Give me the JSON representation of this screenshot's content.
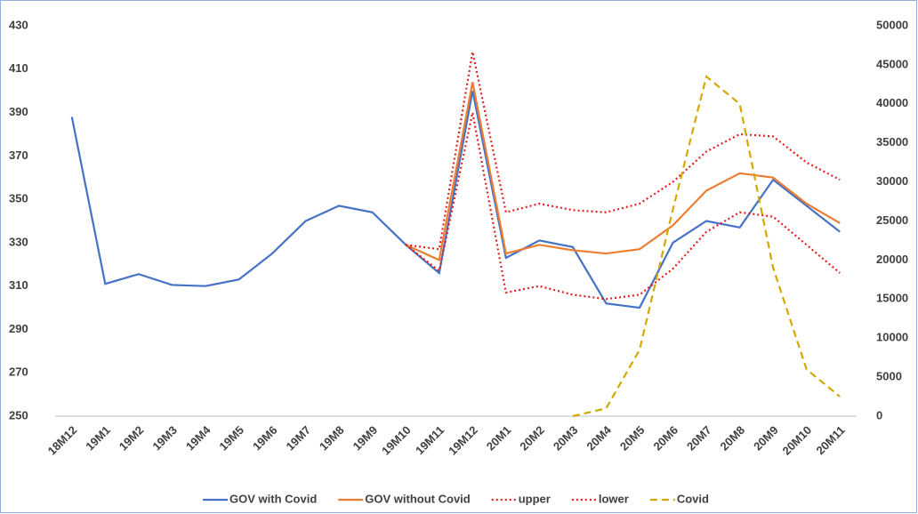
{
  "chart_data": {
    "type": "line",
    "categories": [
      "18M12",
      "19M1",
      "19M2",
      "19M3",
      "19M4",
      "19M5",
      "19M6",
      "19M7",
      "19M8",
      "19M9",
      "19M10",
      "19M11",
      "19M12",
      "20M1",
      "20M2",
      "20M3",
      "20M4",
      "20M5",
      "20M6",
      "20M7",
      "20M8",
      "20M9",
      "20M10",
      "20M11"
    ],
    "series": [
      {
        "name": "GOV with Covid",
        "color": "#4472c4",
        "dash": "solid",
        "values": [
          388,
          311,
          315.5,
          310.5,
          310,
          313,
          325,
          340,
          347,
          344,
          329,
          316,
          400,
          323,
          331,
          328,
          302,
          300,
          330,
          340,
          337,
          359,
          347,
          335
        ]
      },
      {
        "name": "GOV without Covid",
        "color": "#ed7d31",
        "dash": "solid",
        "values": [
          null,
          null,
          null,
          null,
          null,
          null,
          null,
          null,
          null,
          null,
          329,
          322,
          404,
          325,
          329,
          326.5,
          325,
          327,
          338,
          354,
          362,
          360,
          348,
          339
        ]
      },
      {
        "name": "upper",
        "color": "#e02020",
        "dash": "dotted",
        "values": [
          null,
          null,
          null,
          null,
          null,
          null,
          null,
          null,
          null,
          null,
          329,
          327,
          418,
          344,
          348,
          345,
          344,
          348,
          358,
          372,
          380,
          379,
          367,
          359
        ]
      },
      {
        "name": "lower",
        "color": "#e02020",
        "dash": "dotted",
        "values": [
          null,
          null,
          null,
          null,
          null,
          null,
          null,
          null,
          null,
          null,
          329,
          317,
          390,
          307,
          310,
          306,
          304,
          306,
          318,
          335,
          344,
          342,
          329,
          316
        ]
      },
      {
        "name": "Covid",
        "color": "#d4a800",
        "dash": "dashed",
        "axis": "y2",
        "values": [
          null,
          null,
          null,
          null,
          null,
          null,
          null,
          null,
          null,
          null,
          null,
          null,
          null,
          null,
          null,
          0,
          1000,
          8500,
          26500,
          43500,
          40000,
          19000,
          6000,
          2500
        ]
      }
    ],
    "ylim": [
      250,
      430
    ],
    "yticks": [
      250,
      270,
      290,
      310,
      330,
      350,
      370,
      390,
      410,
      430
    ],
    "y2lim": [
      0,
      50000
    ],
    "y2ticks": [
      0,
      5000,
      10000,
      15000,
      20000,
      25000,
      30000,
      35000,
      40000,
      45000,
      50000
    ],
    "grid": false,
    "legend": "bottom"
  }
}
